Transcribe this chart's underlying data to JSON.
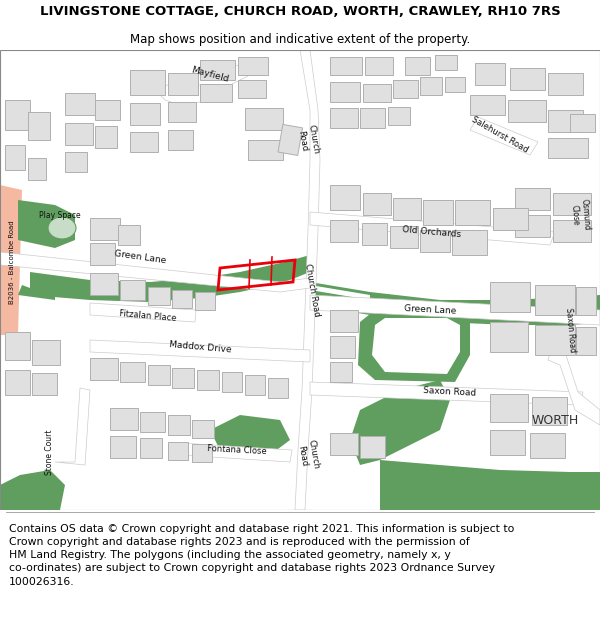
{
  "title_line1": "LIVINGSTONE COTTAGE, CHURCH ROAD, WORTH, CRAWLEY, RH10 7RS",
  "title_line2": "Map shows position and indicative extent of the property.",
  "footer_text": "Contains OS data © Crown copyright and database right 2021. This information is subject to\nCrown copyright and database rights 2023 and is reproduced with the permission of\nHM Land Registry. The polygons (including the associated geometry, namely x, y\nco-ordinates) are subject to Crown copyright and database rights 2023 Ordnance Survey\n100026316.",
  "bg_color": "#ffffff",
  "map_bg": "#ffffff",
  "road_color": "#ffffff",
  "green_color": "#5f9e5f",
  "building_color": "#e0e0e0",
  "building_outline": "#b0b0b0",
  "red_outline": "#e8000a",
  "b2036_color": "#f5b8a0",
  "title_fontsize": 9.5,
  "subtitle_fontsize": 8.5,
  "footer_fontsize": 7.8
}
